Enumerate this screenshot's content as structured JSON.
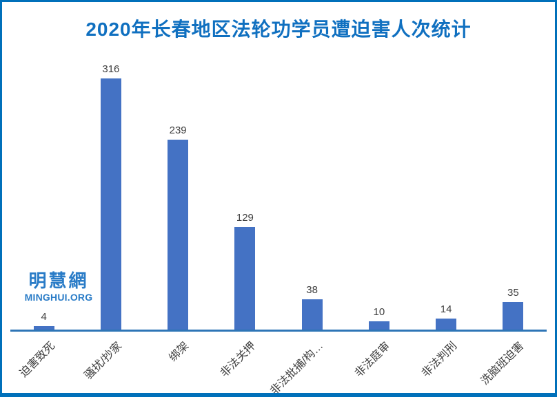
{
  "title": "2020年长春地区法轮功学员遭迫害人次统计",
  "logo": {
    "cjk": "明慧網",
    "latin": "MINGHUI.ORG"
  },
  "colors": {
    "frame_border": "#0070BA",
    "bar": "#4472C4",
    "axis_line": "#2E75B6",
    "title": "#1070C0",
    "text_label": "#404040",
    "logo": "#2A7CC7",
    "background": "#FFFFFF"
  },
  "chart_data": {
    "type": "bar",
    "title": "2020年长春地区法轮功学员遭迫害人次统计",
    "categories": [
      "迫害致死",
      "骚扰/抄家",
      "绑架",
      "非法关押",
      "非法批捕/构…",
      "非法庭审",
      "非法判刑",
      "洗脑班迫害"
    ],
    "values": [
      4,
      316,
      239,
      129,
      38,
      10,
      14,
      35
    ],
    "xlabel": "",
    "ylabel": "",
    "ylim": [
      0,
      412
    ],
    "grid": false,
    "legend": "none",
    "data_labels": true,
    "bar_color": "#4472C4",
    "category_label_rotation_deg": -45
  }
}
